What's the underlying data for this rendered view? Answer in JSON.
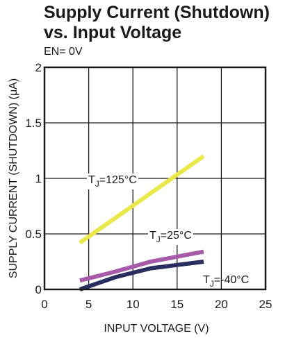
{
  "title_line1": "Supply Current (Shutdown)",
  "title_line2": "vs. Input Voltage",
  "subtitle": "EN= 0V",
  "chart_data": {
    "type": "line",
    "title": "Supply Current (Shutdown) vs. Input Voltage",
    "subtitle": "EN= 0V",
    "xlabel": "INPUT VOLTAGE (V)",
    "ylabel": "SUPPLY CURRENT (SHUTDOWN) (μA)",
    "xlim": [
      0,
      25
    ],
    "ylim": [
      0,
      2
    ],
    "xticks": [
      0,
      5,
      10,
      15,
      20,
      25
    ],
    "xtick_labels": [
      "0",
      "5",
      "10",
      "15",
      "20",
      "25"
    ],
    "yticks": [
      0,
      0.5,
      1,
      1.5,
      2
    ],
    "ytick_labels": [
      "0",
      "0.5",
      "1",
      "1.5",
      "2"
    ],
    "grid": true,
    "legend": "none",
    "series": [
      {
        "name": "T_J=125°C",
        "label_main": "T",
        "label_sub": "J",
        "label_rest": "=125°C",
        "color": "#e8e84a",
        "x": [
          4,
          18
        ],
        "y": [
          0.42,
          1.2
        ]
      },
      {
        "name": "T_J=25°C",
        "label_main": "T",
        "label_sub": "J",
        "label_rest": "=25°C",
        "color": "#a65aa8",
        "x": [
          4,
          8,
          12,
          18
        ],
        "y": [
          0.08,
          0.16,
          0.25,
          0.34
        ]
      },
      {
        "name": "T_J=-40°C",
        "label_main": "T",
        "label_sub": "J",
        "label_rest": "=-40°C",
        "color": "#2b2d5e",
        "x": [
          4,
          8,
          12,
          18
        ],
        "y": [
          0.0,
          0.11,
          0.19,
          0.25
        ]
      }
    ]
  }
}
